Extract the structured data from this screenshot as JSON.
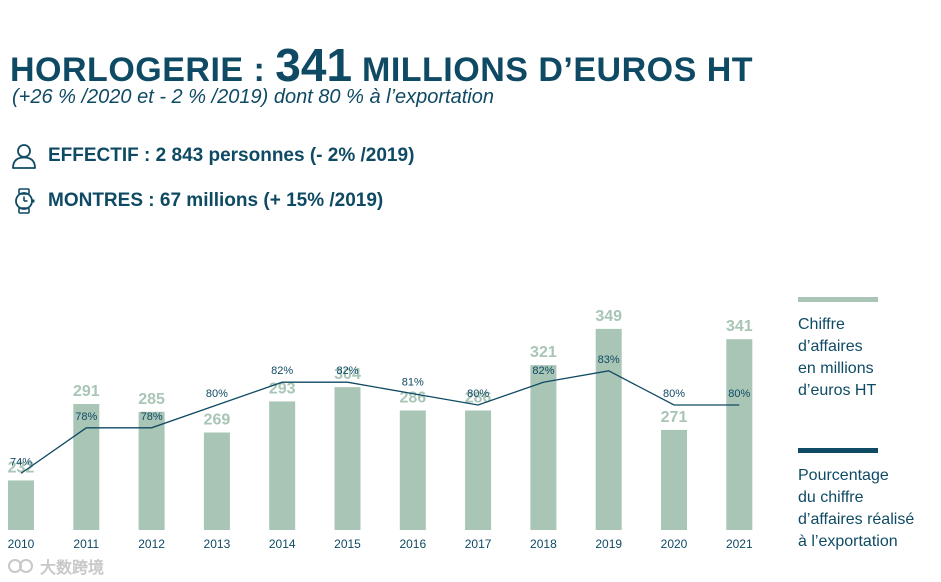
{
  "header": {
    "title_prefix": "HORLOGERIE : ",
    "title_value": "341",
    "title_suffix": " MILLIONS D’EUROS HT",
    "subtitle": "(+26 % /2020 et - 2 % /2019) dont 80 % à l’exportation"
  },
  "stats": [
    {
      "icon": "person-icon",
      "text": "EFFECTIF : 2 843 personnes (- 2% /2019)"
    },
    {
      "icon": "watch-icon",
      "text": "MONTRES : 67 millions (+ 15% /2019)"
    }
  ],
  "colors": {
    "bar": "#a8c5b5",
    "bar_label": "#a8c5b5",
    "line": "#0f4a64",
    "text": "#0f4a64"
  },
  "chart_data": {
    "type": "bar",
    "categories": [
      "2010",
      "2011",
      "2012",
      "2013",
      "2014",
      "2015",
      "2016",
      "2017",
      "2018",
      "2019",
      "2020",
      "2021"
    ],
    "series": [
      {
        "name": "Chiffre d’affaires en millions d’euros HT",
        "type": "bar",
        "values": [
          232,
          291,
          285,
          269,
          293,
          304,
          286,
          286,
          321,
          349,
          271,
          341
        ],
        "labels": [
          "232",
          "291",
          "285",
          "269",
          "293",
          "304",
          "286",
          "286",
          "321",
          "349",
          "271",
          "341"
        ]
      },
      {
        "name": "Pourcentage du chiffre d’affaires réalisé à l’exportation",
        "type": "line",
        "values": [
          74,
          78,
          78,
          80,
          82,
          82,
          81,
          80,
          82,
          83,
          80,
          80
        ],
        "labels": [
          "74%",
          "78%",
          "78%",
          "80%",
          "82%",
          "82%",
          "81%",
          "80%",
          "82%",
          "83%",
          "80%",
          "80%"
        ]
      }
    ],
    "legend_position": "right",
    "grid": false
  },
  "legend": [
    {
      "key": "bars",
      "lines": [
        "Chiffre",
        "d’affaires",
        "en millions",
        "d’euros HT"
      ]
    },
    {
      "key": "line",
      "lines": [
        "Pourcentage",
        "du chiffre",
        "d’affaires réalisé",
        "à l’exportation"
      ]
    }
  ],
  "watermark": {
    "text": "大数跨境"
  }
}
